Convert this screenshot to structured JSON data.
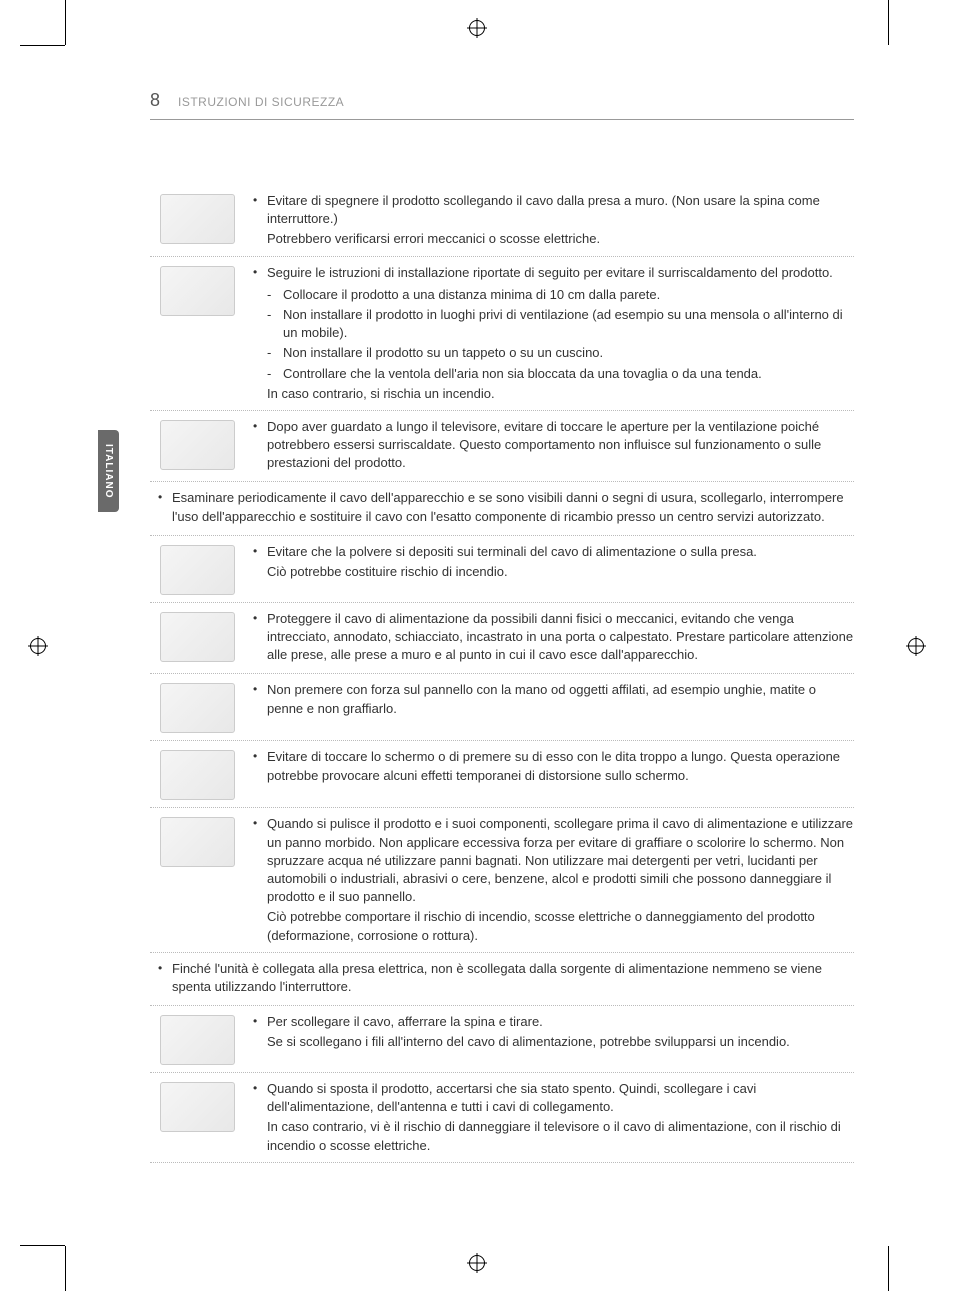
{
  "page_number": "8",
  "header_title": "ISTRUZIONI DI SICUREZZA",
  "lang_tab": "ITALIANO",
  "colors": {
    "text": "#333333",
    "header_text": "#999999",
    "border": "#bbbbbb",
    "tab_bg": "#6a6a6a"
  },
  "items": [
    {
      "icon": "tv-unplug-icon",
      "bullets": [
        {
          "text": "Evitare di spegnere il prodotto scollegando il cavo dalla presa a muro. (Non usare la spina come interruttore.)",
          "plain_after": "Potrebbero verificarsi errori meccanici o scosse elettriche."
        }
      ]
    },
    {
      "icon": "tv-overheat-icon",
      "bullets": [
        {
          "text": "Seguire le istruzioni di installazione riportate di seguito per evitare il surriscaldamento del prodotto.",
          "sub_items": [
            "Collocare il prodotto a una distanza minima di 10 cm dalla parete.",
            "Non installare il prodotto in luoghi privi di ventilazione (ad esempio su una mensola o all'interno di un mobile).",
            "Non installare il prodotto su un tappeto o su un cuscino.",
            "Controllare che la ventola dell'aria non sia bloccata da una tovaglia o da una tenda."
          ],
          "plain_after": "In caso contrario, si rischia un incendio."
        }
      ]
    },
    {
      "icon": "tv-hot-vent-icon",
      "bullets": [
        {
          "text": "Dopo aver guardato a lungo il televisore, evitare di toccare le aperture per la ventilazione poiché potrebbero essersi surriscaldate. Questo comportamento non influisce sul funzionamento o sulle prestazioni del prodotto."
        }
      ]
    },
    {
      "no_icon": true,
      "bullets": [
        {
          "text": "Esaminare periodicamente il cavo dell'apparecchio e se sono visibili danni o segni di usura, scollegarlo, interrompere l'uso dell'apparecchio e sostituire il cavo con l'esatto componente di ricambio presso un centro servizi autorizzato."
        }
      ]
    },
    {
      "icon": "plug-dust-icon",
      "bullets": [
        {
          "text": "Evitare che la polvere si depositi sui terminali del cavo di alimentazione o sulla presa.",
          "plain_after": "Ciò potrebbe costituire rischio di incendio."
        }
      ]
    },
    {
      "icon": "cable-protect-icon",
      "bullets": [
        {
          "text": "Proteggere il cavo di alimentazione da possibili danni fisici o meccanici, evitando che venga intrecciato, annodato, schiacciato, incastrato in una porta o calpestato. Prestare particolare attenzione alle prese, alle prese a muro e al punto in cui il cavo esce dall'apparecchio."
        }
      ]
    },
    {
      "icon": "tv-press-panel-icon",
      "bullets": [
        {
          "text": "Non premere con forza sul pannello con la mano od oggetti affilati, ad esempio unghie, matite o penne e non graffiarlo."
        }
      ]
    },
    {
      "icon": "tv-touch-screen-icon",
      "bullets": [
        {
          "text": "Evitare di toccare lo schermo o di premere su di esso con le dita troppo a lungo. Questa operazione potrebbe provocare alcuni effetti temporanei di distorsione sullo schermo."
        }
      ]
    },
    {
      "icon": "tv-clean-icon",
      "bullets": [
        {
          "text": "Quando si pulisce il prodotto e i suoi componenti, scollegare prima il cavo di alimentazione e utilizzare un panno morbido. Non applicare eccessiva forza per evitare di graffiare o scolorire lo schermo. Non spruzzare acqua né utilizzare panni bagnati. Non utilizzare mai detergenti per vetri, lucidanti per automobili o industriali, abrasivi o cere, benzene, alcol e prodotti simili che possono danneggiare il prodotto e il suo pannello.",
          "plain_after": "Ciò potrebbe comportare il rischio di incendio, scosse elettriche o danneggiamento del prodotto (deformazione, corrosione o rottura)."
        }
      ]
    },
    {
      "no_icon": true,
      "bullets": [
        {
          "text": "Finché l'unità è collegata alla presa elettrica, non è scollegata dalla sorgente di alimentazione nemmeno se viene spenta utilizzando l'interruttore."
        }
      ]
    },
    {
      "icon": "plug-pull-icon",
      "bullets": [
        {
          "text": "Per scollegare il cavo, afferrare la spina e tirare.",
          "plain_after": "Se si scollegano i fili all'interno del cavo di alimentazione, potrebbe svilupparsi un incendio."
        }
      ]
    },
    {
      "icon": "tv-move-icon",
      "bullets": [
        {
          "text": "Quando si sposta il prodotto, accertarsi che sia stato spento. Quindi, scollegare i cavi dell'alimentazione, dell'antenna e tutti i cavi di collegamento.",
          "plain_after": "In caso contrario, vi è il rischio di danneggiare il televisore o il cavo di alimentazione, con il rischio di incendio o scosse elettriche."
        }
      ]
    }
  ]
}
